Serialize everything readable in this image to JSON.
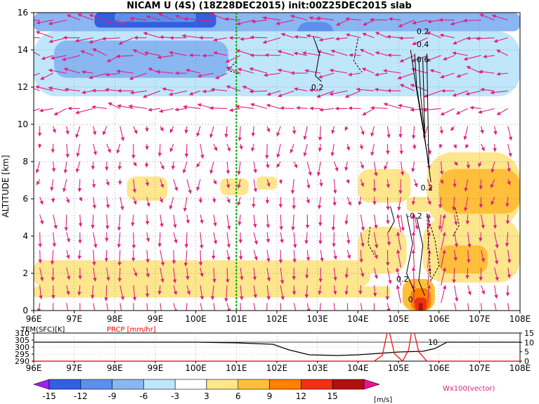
{
  "title": "NICAM U (4S) (18Z28DEC2015) init:00Z25DEC2015 slab",
  "chart_data": [
    {
      "type": "heatmap",
      "panel": "main cross-section",
      "ylabel": "ALTITUDE [km]",
      "xlim": [
        96,
        108
      ],
      "ylim": [
        0,
        16
      ],
      "x_ticks": [
        "96E",
        "97E",
        "98E",
        "99E",
        "100E",
        "101E",
        "102E",
        "103E",
        "104E",
        "105E",
        "106E",
        "107E",
        "108E"
      ],
      "y_ticks": [
        "0",
        "2",
        "4",
        "6",
        "8",
        "10",
        "12",
        "14",
        "16"
      ],
      "grid": "dotted",
      "reference_line": {
        "x": 101,
        "color": "#00aa00"
      },
      "contour_labels": [
        {
          "text": "0.2",
          "x": 103.0,
          "y": 12.0
        },
        {
          "text": "0.2",
          "x": 105.6,
          "y": 15.0
        },
        {
          "text": "0.4",
          "x": 105.6,
          "y": 14.3
        },
        {
          "text": "0.6",
          "x": 105.6,
          "y": 13.5
        },
        {
          "text": "0.2",
          "x": 105.7,
          "y": 6.6
        },
        {
          "text": "-0.2",
          "x": 105.4,
          "y": 5.1
        },
        {
          "text": "0.2",
          "x": 105.1,
          "y": 1.7
        },
        {
          "text": "0",
          "x": 105.3,
          "y": 0.6
        }
      ],
      "shading_regions": [
        {
          "x": [
            96.0,
            108.0
          ],
          "y": [
            15.0,
            16.0
          ],
          "value": -9
        },
        {
          "x": [
            97.5,
            100.5
          ],
          "y": [
            15.2,
            16.0
          ],
          "value": -15
        },
        {
          "x": [
            98.0,
            100.0
          ],
          "y": [
            15.5,
            16.0
          ],
          "value": -12
        },
        {
          "x": [
            102.5,
            103.4
          ],
          "y": [
            13.8,
            15.5
          ],
          "value": -12
        },
        {
          "x": [
            102.8,
            103.2
          ],
          "y": [
            14.3,
            15.0
          ],
          "value": -15
        },
        {
          "x": [
            96.0,
            108.0
          ],
          "y": [
            11.5,
            15.0
          ],
          "value": -6
        },
        {
          "x": [
            96.5,
            100.8
          ],
          "y": [
            12.5,
            14.5
          ],
          "value": -9
        },
        {
          "x": [
            96.0,
            104.5
          ],
          "y": [
            10.5,
            11.5
          ],
          "value": -3
        },
        {
          "x": [
            104.5,
            108.0
          ],
          "y": [
            10.0,
            11.5
          ],
          "value": -3
        },
        {
          "x": [
            100.5,
            101.5
          ],
          "y": [
            8.8,
            9.8
          ],
          "value": -3
        },
        {
          "x": [
            102.5,
            103.5
          ],
          "y": [
            8.6,
            9.6
          ],
          "value": -3
        },
        {
          "x": [
            96.8,
            98.8
          ],
          "y": [
            6.8,
            8.2
          ],
          "value": -3
        },
        {
          "x": [
            98.3,
            99.3
          ],
          "y": [
            5.9,
            7.2
          ],
          "value": 3
        },
        {
          "x": [
            100.6,
            101.3
          ],
          "y": [
            6.2,
            7.1
          ],
          "value": 3
        },
        {
          "x": [
            101.5,
            102.0
          ],
          "y": [
            6.5,
            7.2
          ],
          "value": 3
        },
        {
          "x": [
            104.0,
            105.3
          ],
          "y": [
            5.8,
            7.6
          ],
          "value": 3
        },
        {
          "x": [
            105.2,
            105.8
          ],
          "y": [
            5.3,
            6.1
          ],
          "value": 3
        },
        {
          "x": [
            105.7,
            108.0
          ],
          "y": [
            4.5,
            8.5
          ],
          "value": 3
        },
        {
          "x": [
            106.0,
            108.0
          ],
          "y": [
            5.2,
            7.6
          ],
          "value": 6
        },
        {
          "x": [
            96.0,
            101.5
          ],
          "y": [
            3.8,
            5.0
          ],
          "value": -3
        },
        {
          "x": [
            96.5,
            99.0
          ],
          "y": [
            2.8,
            3.6
          ],
          "value": -3
        },
        {
          "x": [
            96.0,
            104.3
          ],
          "y": [
            1.3,
            2.7
          ],
          "value": 3
        },
        {
          "x": [
            96.0,
            104.8
          ],
          "y": [
            0.7,
            1.3
          ],
          "value": 3
        },
        {
          "x": [
            104.0,
            105.2
          ],
          "y": [
            2.0,
            4.5
          ],
          "value": 3
        },
        {
          "x": [
            105.6,
            108.0
          ],
          "y": [
            1.5,
            5.0
          ],
          "value": 3
        },
        {
          "x": [
            106.0,
            107.2
          ],
          "y": [
            2.0,
            3.5
          ],
          "value": 6
        },
        {
          "x": [
            105.1,
            105.9
          ],
          "y": [
            0.0,
            1.7
          ],
          "value": 6
        },
        {
          "x": [
            105.3,
            105.8
          ],
          "y": [
            0.0,
            1.2
          ],
          "value": 9
        },
        {
          "x": [
            105.4,
            105.7
          ],
          "y": [
            0.0,
            0.7
          ],
          "value": 12
        },
        {
          "x": [
            105.5,
            105.6
          ],
          "y": [
            0.0,
            0.4
          ],
          "value": 15
        }
      ]
    },
    {
      "type": "line",
      "panel": "surface time-series strip",
      "series": [
        {
          "name": "TEM(SFC)[K]",
          "color": "#000000",
          "x": [
            96.0,
            100.0,
            101.0,
            101.9,
            102.3,
            102.8,
            103.5,
            104.0,
            104.5,
            105.0,
            105.6,
            105.9,
            106.2,
            107.0,
            108.0
          ],
          "y": [
            303.5,
            303.5,
            303.0,
            302.0,
            298.0,
            294.5,
            294.0,
            294.5,
            295.5,
            296.5,
            297.0,
            299.0,
            303.5,
            303.5,
            303.5
          ]
        },
        {
          "name": "PRCP [mm/hr]",
          "color": "#ff0000",
          "x": [
            96.0,
            104.4,
            104.6,
            104.75,
            104.9,
            105.1,
            105.25,
            105.35,
            105.5,
            105.7,
            108.0
          ],
          "y": [
            0,
            0,
            3,
            18,
            4,
            0,
            6,
            19,
            5,
            0,
            0
          ]
        }
      ],
      "left_axis_ticks": [
        "290",
        "295",
        "300",
        "305",
        "310"
      ],
      "right_axis_ticks": [
        "0",
        "5",
        "10",
        "15"
      ],
      "annotation": "10"
    }
  ],
  "colorbar": {
    "levels": [
      "-15",
      "-12",
      "-9",
      "-6",
      "-3",
      "3",
      "6",
      "9",
      "12",
      "15"
    ],
    "colors": [
      "#a020f0",
      "#3060e0",
      "#5c90ea",
      "#8ab6f2",
      "#bfe6fa",
      "#ffffff",
      "#fde68c",
      "#ffbf3a",
      "#ff7f00",
      "#f03010",
      "#b01010",
      "#f01090"
    ],
    "unit": "[m/s]"
  },
  "vector_label": "Wx100(vector)",
  "vector_color": "#e0207f"
}
